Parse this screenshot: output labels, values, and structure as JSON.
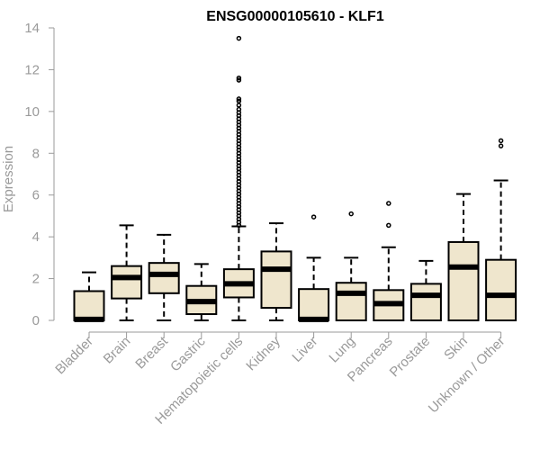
{
  "chart_data": {
    "type": "boxplot",
    "title": "ENSG00000105610 - KLF1",
    "xlabel": "",
    "ylabel": "Expression",
    "ylim": [
      0,
      14
    ],
    "yticks": [
      0,
      2,
      4,
      6,
      8,
      10,
      12,
      14
    ],
    "categories": [
      "Bladder",
      "Brain",
      "Breast",
      "Gastric",
      "Hematopoietic cells",
      "Kidney",
      "Liver",
      "Lung",
      "Pancreas",
      "Prostate",
      "Skin",
      "Unknown / Other"
    ],
    "series": [
      {
        "values": [
          {
            "min": 0.0,
            "q1": 0.0,
            "median": 0.05,
            "q3": 1.4,
            "max": 2.3,
            "outliers": []
          },
          {
            "min": 0.0,
            "q1": 1.05,
            "median": 2.05,
            "q3": 2.6,
            "max": 4.55,
            "outliers": []
          },
          {
            "min": 0.0,
            "q1": 1.3,
            "median": 2.2,
            "q3": 2.75,
            "max": 4.1,
            "outliers": []
          },
          {
            "min": 0.0,
            "q1": 0.3,
            "median": 0.9,
            "q3": 1.65,
            "max": 2.7,
            "outliers": []
          },
          {
            "min": 0.0,
            "q1": 1.1,
            "median": 1.75,
            "q3": 2.45,
            "max": 4.5,
            "outliers": [
              4.55,
              4.7,
              4.85,
              5.0,
              5.15,
              5.3,
              5.45,
              5.6,
              5.75,
              5.9,
              6.05,
              6.2,
              6.35,
              6.5,
              6.65,
              6.8,
              6.95,
              7.1,
              7.25,
              7.4,
              7.55,
              7.7,
              7.85,
              8.0,
              8.15,
              8.3,
              8.45,
              8.6,
              8.75,
              8.9,
              9.05,
              9.2,
              9.35,
              9.5,
              9.65,
              9.8,
              9.95,
              10.1,
              10.3,
              10.5,
              10.6,
              11.5,
              11.6,
              13.5
            ]
          },
          {
            "min": 0.0,
            "q1": 0.6,
            "median": 2.45,
            "q3": 3.3,
            "max": 4.65,
            "outliers": []
          },
          {
            "min": 0.0,
            "q1": 0.0,
            "median": 0.05,
            "q3": 1.5,
            "max": 3.0,
            "outliers": [
              4.95
            ]
          },
          {
            "min": 0.0,
            "q1": 0.0,
            "median": 1.3,
            "q3": 1.8,
            "max": 3.0,
            "outliers": [
              5.1
            ]
          },
          {
            "min": 0.0,
            "q1": 0.0,
            "median": 0.8,
            "q3": 1.45,
            "max": 3.5,
            "outliers": [
              4.55,
              5.6
            ]
          },
          {
            "min": 0.0,
            "q1": 0.0,
            "median": 1.2,
            "q3": 1.75,
            "max": 2.85,
            "outliers": []
          },
          {
            "min": 0.0,
            "q1": 0.0,
            "median": 2.55,
            "q3": 3.75,
            "max": 6.05,
            "outliers": []
          },
          {
            "min": 0.0,
            "q1": 0.0,
            "median": 1.2,
            "q3": 2.9,
            "max": 6.7,
            "outliers": [
              8.35,
              8.6
            ]
          }
        ]
      }
    ],
    "grid": false,
    "colors": {
      "box_fill": "#efe6cd",
      "stroke": "#000000",
      "axis": "#9a9a9a"
    }
  }
}
